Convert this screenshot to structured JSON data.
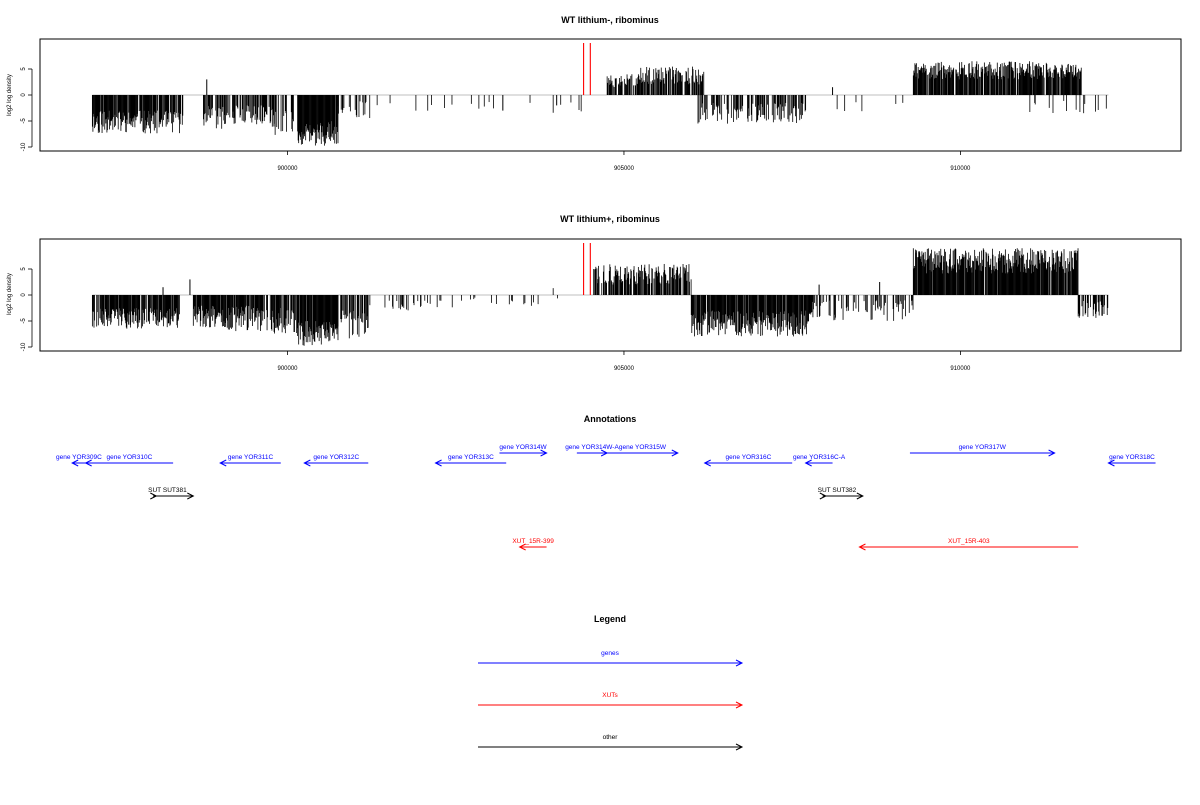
{
  "colors": {
    "genes": "#0000ff",
    "xuts": "#ff0000",
    "other": "#000000",
    "marker": "#ff0000",
    "bars": "#000000"
  },
  "chart_data": [
    {
      "type": "bar",
      "title": "WT lithium-, ribominus",
      "ylabel": "log2 log density",
      "xlim": [
        896500,
        913100
      ],
      "ylim": [
        -10,
        10
      ],
      "yticks": [
        "-10",
        "-5",
        "0",
        "5"
      ],
      "xticks": [
        900000,
        905000,
        910000
      ],
      "xtick_labels": [
        "900000",
        "905000",
        "910000"
      ],
      "marker_lines": [
        904400,
        904500
      ],
      "segments": [
        {
          "start": 897100,
          "end": 898450,
          "min": -7.5,
          "max": -3,
          "density": 0.8,
          "seed": 11
        },
        {
          "start": 898750,
          "end": 899800,
          "min": -6.5,
          "max": -2,
          "density": 0.55,
          "seed": 12
        },
        {
          "start": 899800,
          "end": 900100,
          "min": -8,
          "max": -3,
          "density": 0.4,
          "seed": 13
        },
        {
          "start": 900150,
          "end": 900750,
          "min": -9.8,
          "max": -5,
          "density": 0.95,
          "seed": 14
        },
        {
          "start": 900750,
          "end": 901250,
          "min": -4.5,
          "max": -1,
          "density": 0.25,
          "seed": 15
        },
        {
          "start": 901300,
          "end": 904400,
          "min": -3.5,
          "max": -1,
          "density": 0.05,
          "seed": 16
        },
        {
          "start": 904750,
          "end": 905250,
          "min": 1.5,
          "max": 4,
          "density": 0.6,
          "seed": 17
        },
        {
          "start": 905250,
          "end": 906200,
          "min": 2,
          "max": 5.5,
          "density": 0.7,
          "seed": 18
        },
        {
          "start": 906100,
          "end": 907700,
          "min": -5.5,
          "max": -1.5,
          "density": 0.5,
          "seed": 19
        },
        {
          "start": 907800,
          "end": 909200,
          "min": -3.5,
          "max": -1,
          "density": 0.05,
          "seed": 20
        },
        {
          "start": 909300,
          "end": 911800,
          "min": 3,
          "max": 6.5,
          "density": 0.85,
          "seed": 21
        },
        {
          "start": 911000,
          "end": 912200,
          "min": -3.5,
          "max": -1,
          "density": 0.08,
          "seed": 22
        }
      ],
      "spikes": [
        {
          "x": 898800,
          "v": 3
        },
        {
          "x": 908100,
          "v": 1.5
        },
        {
          "x": 903200,
          "v": -3
        },
        {
          "x": 904000,
          "v": -2
        }
      ]
    },
    {
      "type": "bar",
      "title": "WT lithium+, ribominus",
      "ylabel": "log2 log density",
      "xlim": [
        896500,
        913100
      ],
      "ylim": [
        -10,
        10
      ],
      "yticks": [
        "-10",
        "-5",
        "0",
        "5"
      ],
      "xticks": [
        900000,
        905000,
        910000
      ],
      "xtick_labels": [
        "900000",
        "905000",
        "910000"
      ],
      "marker_lines": [
        904400,
        904500
      ],
      "segments": [
        {
          "start": 897100,
          "end": 898400,
          "min": -6.5,
          "max": -2.5,
          "density": 0.85,
          "seed": 31
        },
        {
          "start": 898600,
          "end": 899600,
          "min": -7,
          "max": -2,
          "density": 0.85,
          "seed": 32
        },
        {
          "start": 899600,
          "end": 900150,
          "min": -7.5,
          "max": -2.5,
          "density": 0.7,
          "seed": 33
        },
        {
          "start": 900150,
          "end": 900750,
          "min": -9.8,
          "max": -5,
          "density": 0.95,
          "seed": 34
        },
        {
          "start": 900750,
          "end": 901200,
          "min": -9,
          "max": -3,
          "density": 0.7,
          "seed": 35
        },
        {
          "start": 901200,
          "end": 903800,
          "min": -3,
          "max": -0.5,
          "density": 0.12,
          "seed": 36
        },
        {
          "start": 903700,
          "end": 904400,
          "min": -2,
          "max": 2,
          "density": 0.06,
          "seed": 37
        },
        {
          "start": 904550,
          "end": 906000,
          "min": 2,
          "max": 6,
          "density": 0.75,
          "seed": 38
        },
        {
          "start": 906000,
          "end": 907800,
          "min": -8,
          "max": -3,
          "density": 0.9,
          "seed": 39
        },
        {
          "start": 907800,
          "end": 909300,
          "min": -5,
          "max": -1,
          "density": 0.3,
          "seed": 40
        },
        {
          "start": 909300,
          "end": 911750,
          "min": 4,
          "max": 9,
          "density": 0.95,
          "seed": 41
        },
        {
          "start": 911750,
          "end": 912200,
          "min": -4.5,
          "max": -1,
          "density": 0.6,
          "seed": 42
        }
      ],
      "spikes": [
        {
          "x": 898550,
          "v": 3
        },
        {
          "x": 898150,
          "v": 1.5
        },
        {
          "x": 908800,
          "v": 2.5
        },
        {
          "x": 907900,
          "v": 2
        }
      ]
    }
  ],
  "annotations": {
    "title": "Annotations",
    "xlim": [
      896500,
      913100
    ],
    "features": [
      {
        "label": "gene YOR309C",
        "category": "genes",
        "start": 896800,
        "end": 897000,
        "strand": "-",
        "row": 1
      },
      {
        "label": "gene YOR310C",
        "category": "genes",
        "start": 897000,
        "end": 898300,
        "strand": "-",
        "row": 1
      },
      {
        "label": "gene YOR311C",
        "category": "genes",
        "start": 899000,
        "end": 899900,
        "strand": "-",
        "row": 1
      },
      {
        "label": "gene YOR312C",
        "category": "genes",
        "start": 900250,
        "end": 901200,
        "strand": "-",
        "row": 1
      },
      {
        "label": "gene YOR313C",
        "category": "genes",
        "start": 902200,
        "end": 903250,
        "strand": "-",
        "row": 1
      },
      {
        "label": "gene YOR314W",
        "category": "genes",
        "start": 903150,
        "end": 903850,
        "strand": "+",
        "row": 0
      },
      {
        "label": "gene YOR314W-A",
        "category": "genes",
        "start": 904300,
        "end": 904750,
        "strand": "+",
        "row": 0
      },
      {
        "label": "gene YOR315W",
        "category": "genes",
        "start": 904750,
        "end": 905800,
        "strand": "+",
        "row": 0
      },
      {
        "label": "gene YOR316C",
        "category": "genes",
        "start": 906200,
        "end": 907500,
        "strand": "-",
        "row": 1
      },
      {
        "label": "gene YOR316C-A",
        "category": "genes",
        "start": 907700,
        "end": 908100,
        "strand": "-",
        "row": 1
      },
      {
        "label": "gene YOR317W",
        "category": "genes",
        "start": 909250,
        "end": 911400,
        "strand": "+",
        "row": 0
      },
      {
        "label": "gene YOR318C",
        "category": "genes",
        "start": 912200,
        "end": 912900,
        "strand": "-",
        "row": 1
      },
      {
        "label": "SUT",
        "category": "other",
        "start": 898000,
        "end": 898050,
        "strand": "+",
        "row": 2
      },
      {
        "label": "SUT381",
        "category": "other",
        "start": 898050,
        "end": 898600,
        "strand": "+",
        "row": 2
      },
      {
        "label": "SUT",
        "category": "other",
        "start": 907950,
        "end": 908000,
        "strand": "+",
        "row": 2
      },
      {
        "label": "SUT382",
        "category": "other",
        "start": 908000,
        "end": 908550,
        "strand": "+",
        "row": 2
      },
      {
        "label": "XUT_15R-399",
        "category": "xuts",
        "start": 903450,
        "end": 903850,
        "strand": "-",
        "row": 3
      },
      {
        "label": "XUT_15R-403",
        "category": "xuts",
        "start": 908500,
        "end": 911750,
        "strand": "-",
        "row": 3
      }
    ]
  },
  "legend": {
    "title": "Legend",
    "items": [
      {
        "label": "genes",
        "category": "genes"
      },
      {
        "label": "XUTs",
        "category": "xuts"
      },
      {
        "label": "other",
        "category": "other"
      }
    ]
  }
}
